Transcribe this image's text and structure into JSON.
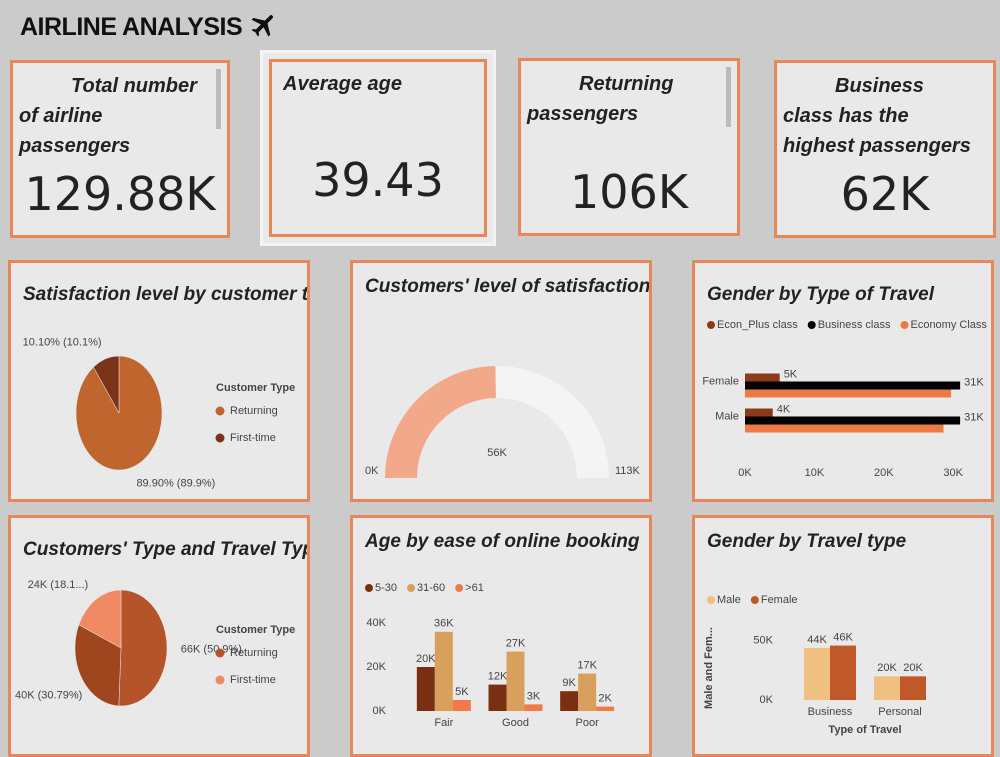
{
  "header": {
    "title": "AIRLINE ANALYSIS"
  },
  "cards": [
    {
      "label": "Total number of airline passengers",
      "value": "129.88K"
    },
    {
      "label": "Average age",
      "value": "39.43"
    },
    {
      "label": "Returning passengers",
      "value": "106K"
    },
    {
      "label": "Business class has the highest passengers",
      "value": "62K"
    }
  ],
  "chart_data": [
    {
      "type": "pie",
      "title": "Satisfaction level by customer type",
      "legend_title": "Customer Type",
      "categories": [
        "Returning",
        "First-time"
      ],
      "values": [
        89.9,
        10.1
      ],
      "value_labels": [
        "89.90% (89.9%)",
        "10.10% (10.1%)"
      ],
      "colors": [
        "#c0652e",
        "#7a3318"
      ]
    },
    {
      "type": "gauge",
      "title": "Customers' level of satisfaction",
      "value": 56000,
      "value_label": "56K",
      "min": {
        "value": 0,
        "label": "0K"
      },
      "max": {
        "value": 113000,
        "label": "113K"
      },
      "color": "#f2a98a",
      "track_color": "#f4f4f4"
    },
    {
      "type": "hbar",
      "title": "Gender by Type of Travel",
      "categories": [
        "Female",
        "Male"
      ],
      "series": [
        {
          "name": "Econ_Plus class",
          "color": "#8b3a1a",
          "values": [
            5000,
            4000
          ],
          "value_labels": [
            "5K",
            "4K"
          ]
        },
        {
          "name": "Business class",
          "color": "#000000",
          "values": [
            31000,
            31000
          ],
          "value_labels": [
            "31K",
            "31K"
          ]
        },
        {
          "name": "Economy Class",
          "color": "#ec7a44",
          "values": [
            29700,
            28600
          ]
        }
      ],
      "xlim": [
        0,
        33000
      ],
      "xticks": [
        {
          "value": 0,
          "label": "0K"
        },
        {
          "value": 10000,
          "label": "10K"
        },
        {
          "value": 20000,
          "label": "20K"
        },
        {
          "value": 30000,
          "label": "30K"
        }
      ]
    },
    {
      "type": "pie",
      "title": "Customers' Type and Travel Type",
      "legend_title": "Customer Type",
      "categories": [
        "Returning",
        null,
        "First-time"
      ],
      "values": [
        66000,
        40000,
        24000
      ],
      "value_labels": [
        "66K (50.9%)",
        "40K (30.79%)",
        "24K (18.1...)"
      ],
      "colors": [
        "#b5532a",
        "#a0461f",
        "#f08a65"
      ]
    },
    {
      "type": "bar",
      "title": "Age by ease of online booking",
      "categories": [
        "Fair",
        "Good",
        "Poor"
      ],
      "series": [
        {
          "name": "5-30",
          "color": "#7a2e12",
          "values": [
            20000,
            12000,
            9000
          ],
          "value_labels": [
            "20K",
            "12K",
            "9K"
          ]
        },
        {
          "name": "31-60",
          "color": "#d9a05b",
          "values": [
            36000,
            27000,
            17000
          ],
          "value_labels": [
            "36K",
            "27K",
            "17K"
          ]
        },
        {
          "name": ">61",
          "color": "#f07a4a",
          "values": [
            5000,
            3000,
            2000
          ],
          "value_labels": [
            "5K",
            "3K",
            "2K"
          ]
        }
      ],
      "ylim": [
        0,
        40000
      ],
      "yticks": [
        {
          "value": 0,
          "label": "0K"
        },
        {
          "value": 20000,
          "label": "20K"
        },
        {
          "value": 40000,
          "label": "40K"
        }
      ]
    },
    {
      "type": "bar",
      "title": "Gender by Travel type",
      "ylabel": "Male and Fem...",
      "xlabel": "Type of Travel",
      "categories": [
        "Business",
        "Personal"
      ],
      "series": [
        {
          "name": "Male",
          "color": "#f0c080",
          "values": [
            44000,
            20000
          ],
          "value_labels": [
            "44K",
            "20K"
          ]
        },
        {
          "name": "Female",
          "color": "#c0582a",
          "values": [
            46000,
            20000
          ],
          "value_labels": [
            "46K",
            "20K"
          ]
        }
      ],
      "ylim": [
        0,
        60000
      ],
      "yticks": [
        {
          "value": 0,
          "label": "0K"
        },
        {
          "value": 50000,
          "label": "50K"
        }
      ]
    }
  ]
}
